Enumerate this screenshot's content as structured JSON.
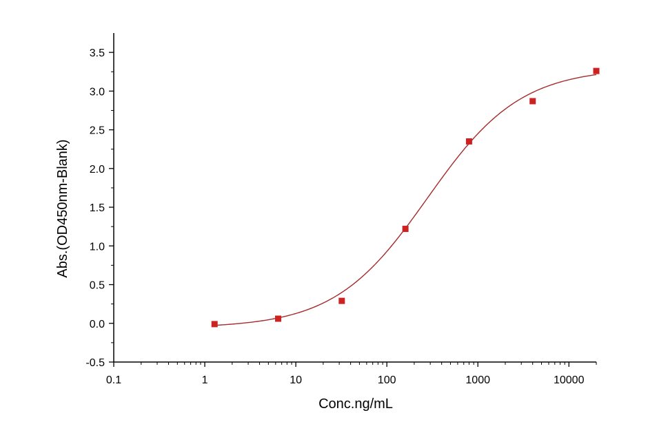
{
  "chart_data": {
    "type": "scatter",
    "xlabel": "Conc.ng/mL",
    "ylabel": "Abs.(OD450nm-Blank)",
    "x_scale": "log",
    "xlim": [
      0.1,
      20000
    ],
    "ylim": [
      -0.5,
      3.75
    ],
    "x_ticks": [
      0.1,
      1,
      10,
      100,
      1000,
      10000
    ],
    "x_tick_labels": [
      "0.1",
      "1",
      "10",
      "100",
      "1000",
      "10000"
    ],
    "y_ticks": [
      -0.5,
      0.0,
      0.5,
      1.0,
      1.5,
      2.0,
      2.5,
      3.0,
      3.5
    ],
    "y_tick_labels": [
      "-0.5",
      "0.0",
      "0.5",
      "1.0",
      "1.5",
      "2.0",
      "2.5",
      "3.0",
      "3.5"
    ],
    "grid": false,
    "series": [
      {
        "x": [
          1.28,
          6.4,
          32,
          160,
          800,
          4000,
          20000
        ],
        "y": [
          -0.01,
          0.06,
          0.29,
          1.22,
          2.35,
          2.87,
          3.26
        ],
        "marker": "square",
        "color": "#cc2222"
      }
    ],
    "fit_curve": {
      "type": "4PL",
      "bottom": -0.06,
      "top": 3.3,
      "ec50": 280,
      "hill": 0.85,
      "x_range": [
        1.28,
        20000
      ],
      "color": "#a52a2a"
    }
  }
}
